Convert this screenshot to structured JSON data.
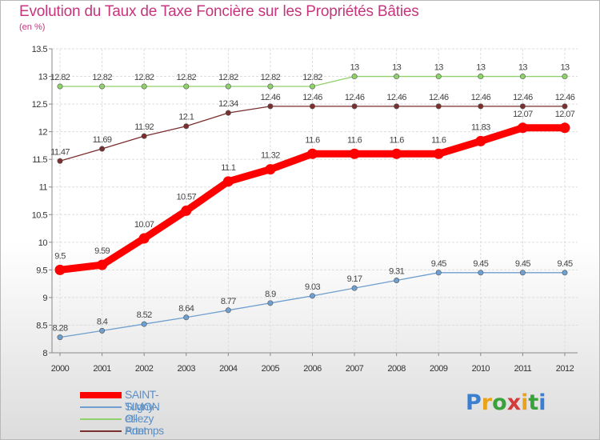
{
  "chart_data": {
    "type": "line",
    "title": "Evolution du Taux de Taxe Foncière sur les Propriétés Bâties",
    "subtitle": "(en %)",
    "xlabel": "",
    "ylabel": "",
    "ylim": [
      8,
      13.5
    ],
    "yticks": [
      "8",
      "8.5",
      "9",
      "9.5",
      "10",
      "10.5",
      "11",
      "11.5",
      "12",
      "12.5",
      "13",
      "13.5"
    ],
    "categories": [
      "2000",
      "2001",
      "2002",
      "2003",
      "2004",
      "2005",
      "2006",
      "2007",
      "2008",
      "2009",
      "2010",
      "2011",
      "2012"
    ],
    "grid": true,
    "legend_position": "bottom-left",
    "series": [
      {
        "name": "SAINT-SIMON",
        "color": "#ff0000",
        "labels": [
          "9.5",
          "9.59",
          "10.07",
          "10.57",
          "11.1",
          "11.32",
          "11.6",
          "11.6",
          "11.6",
          "11.6",
          "11.83",
          "12.07",
          "12.07"
        ],
        "values": [
          9.5,
          9.59,
          10.07,
          10.57,
          11.1,
          11.32,
          11.6,
          11.6,
          11.6,
          11.6,
          11.83,
          12.07,
          12.07
        ]
      },
      {
        "name": "Tugny-et-Pont",
        "color": "#6f9fcf",
        "labels": [
          "8.28",
          "8.4",
          "8.52",
          "8.64",
          "8.77",
          "8.9",
          "9.03",
          "9.17",
          "9.31",
          "9.45",
          "9.45",
          "9.45",
          "9.45"
        ],
        "values": [
          8.28,
          8.4,
          8.52,
          8.64,
          8.77,
          8.9,
          9.03,
          9.17,
          9.31,
          9.45,
          9.45,
          9.45,
          9.45
        ]
      },
      {
        "name": "Ollezy",
        "color": "#8fd16a",
        "labels": [
          "12.82",
          "12.82",
          "12.82",
          "12.82",
          "12.82",
          "12.82",
          "12.82",
          "13",
          "13",
          "13",
          "13",
          "13",
          "13"
        ],
        "values": [
          12.82,
          12.82,
          12.82,
          12.82,
          12.82,
          12.82,
          12.82,
          13,
          13,
          13,
          13,
          13,
          13
        ]
      },
      {
        "name": "Artemps",
        "color": "#7b2e2e",
        "labels": [
          "11.47",
          "11.69",
          "11.92",
          "12.1",
          "12.34",
          "12.46",
          "12.46",
          "12.46",
          "12.46",
          "12.46",
          "12.46",
          "12.46",
          "12.46"
        ],
        "values": [
          11.47,
          11.69,
          11.92,
          12.1,
          12.34,
          12.46,
          12.46,
          12.46,
          12.46,
          12.46,
          12.46,
          12.46,
          12.46
        ]
      }
    ]
  },
  "logo": {
    "text": "Proxiti"
  }
}
